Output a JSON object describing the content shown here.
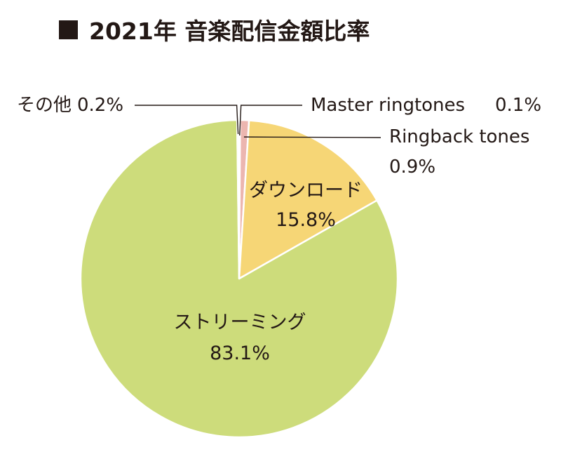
{
  "header": {
    "title": "2021年 音楽配信金額比率"
  },
  "colors": {
    "text": "#231815",
    "slice_border": "#ffffff",
    "leader_line": "#231815"
  },
  "chart_data": {
    "type": "pie",
    "title": "2021年 音楽配信金額比率",
    "unit": "%",
    "start_angle_deg": 0,
    "direction": "clockwise",
    "slices": [
      {
        "label": "Master ringtones",
        "value": 0.1,
        "value_label": "0.1%",
        "color": "#c6d9a0"
      },
      {
        "label": "Ringback tones",
        "value": 0.9,
        "value_label": "0.9%",
        "color": "#ecb6b0"
      },
      {
        "label": "ダウンロード",
        "value": 15.8,
        "value_label": "15.8%",
        "color": "#f6d676"
      },
      {
        "label": "ストリーミング",
        "value": 83.1,
        "value_label": "83.1%",
        "color": "#cddc7b"
      },
      {
        "label": "その他",
        "value": 0.2,
        "value_label": "0.2%",
        "color": "#e8ecd6"
      }
    ]
  }
}
